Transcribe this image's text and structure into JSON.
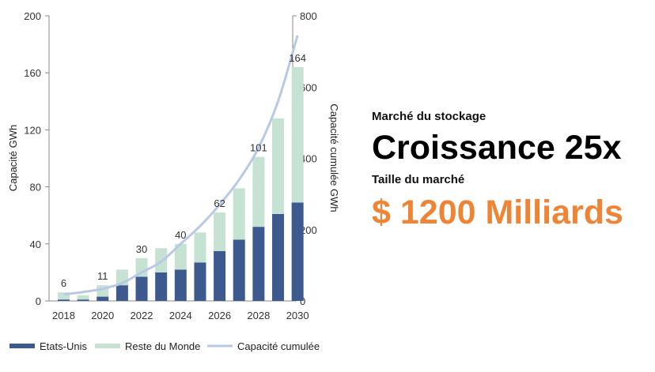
{
  "chart_data": {
    "type": "bar",
    "stacked": true,
    "x": [
      2018,
      2019,
      2020,
      2021,
      2022,
      2023,
      2024,
      2025,
      2026,
      2027,
      2028,
      2029,
      2030
    ],
    "x_tick_labels": [
      "2018",
      "2020",
      "2022",
      "2024",
      "2026",
      "2028",
      "2030"
    ],
    "series": [
      {
        "name": "Etats-Unis",
        "type": "bar",
        "axis": "left",
        "color": "#3d5a8f",
        "values": [
          1,
          1,
          3,
          11,
          17,
          20,
          22,
          27,
          35,
          43,
          52,
          61,
          69
        ]
      },
      {
        "name": "Reste du Monde",
        "type": "bar",
        "axis": "left",
        "color": "#c6e2d3",
        "values": [
          5,
          3,
          8,
          11,
          13,
          17,
          18,
          21,
          27,
          36,
          49,
          67,
          95
        ]
      },
      {
        "name": "Capacité cumulée",
        "type": "line",
        "axis": "right",
        "color": "#b8c9e6",
        "values": [
          18,
          25,
          34,
          50,
          80,
          110,
          160,
          210,
          270,
          340,
          430,
          560,
          745
        ]
      }
    ],
    "totals_labels": [
      {
        "x": 2018,
        "label": "6"
      },
      {
        "x": 2020,
        "label": "11"
      },
      {
        "x": 2022,
        "label": "30"
      },
      {
        "x": 2024,
        "label": "40"
      },
      {
        "x": 2026,
        "label": "62"
      },
      {
        "x": 2028,
        "label": "101"
      },
      {
        "x": 2030,
        "label": "164"
      }
    ],
    "ylabel": "Capacité GWh",
    "y2label": "Capacité cumulée GWh",
    "ylim": [
      0,
      200
    ],
    "y2lim": [
      0,
      800
    ],
    "yticks": [
      0,
      40,
      80,
      120,
      160,
      200
    ],
    "y2ticks": [
      0,
      200,
      400,
      600,
      800
    ],
    "grid": false,
    "legend_position": "bottom"
  },
  "side_panel": {
    "kicker": "Marché du stockage",
    "headline": "Croissance 25x",
    "market_label": "Taille du marché",
    "market_value": "$ 1200 Milliards",
    "market_value_color": "#ee8536"
  }
}
